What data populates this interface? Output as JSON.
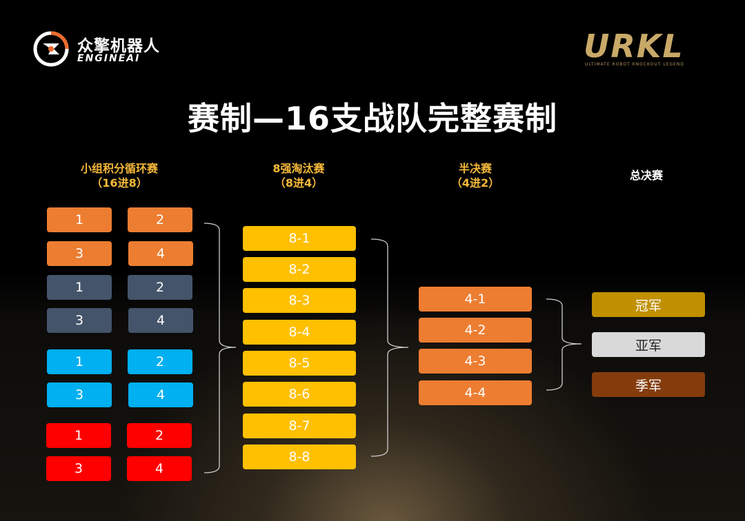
{
  "brand": {
    "left_cn": "众擎机器人",
    "left_en": "ENGINEAI",
    "right_logo": "URKL",
    "right_tagline": "ULTIMATE ROBOT KNOCKOUT LEGEND"
  },
  "title": "赛制—16支战队完整赛制",
  "stages": {
    "group": {
      "line1": "小组积分循环赛",
      "line2": "（16进8）"
    },
    "quarter": {
      "line1": "8强淘汰赛",
      "line2": "（8进4）"
    },
    "semi": {
      "line1": "半决赛",
      "line2": "（4进2）"
    },
    "final": {
      "line1": "总决赛"
    }
  },
  "groups": [
    {
      "color": "#ed7d31",
      "cells": [
        "1",
        "2",
        "3",
        "4"
      ]
    },
    {
      "color": "#44546a",
      "cells": [
        "1",
        "2",
        "3",
        "4"
      ]
    },
    {
      "color": "#00b0f0",
      "cells": [
        "1",
        "2",
        "3",
        "4"
      ]
    },
    {
      "color": "#ff0000",
      "cells": [
        "1",
        "2",
        "3",
        "4"
      ]
    }
  ],
  "quarterfinals": [
    "8-1",
    "8-2",
    "8-3",
    "8-4",
    "8-5",
    "8-6",
    "8-7",
    "8-8"
  ],
  "semifinals": [
    "4-1",
    "4-2",
    "4-3",
    "4-4"
  ],
  "finals": [
    "冠军",
    "亚军",
    "季军"
  ]
}
